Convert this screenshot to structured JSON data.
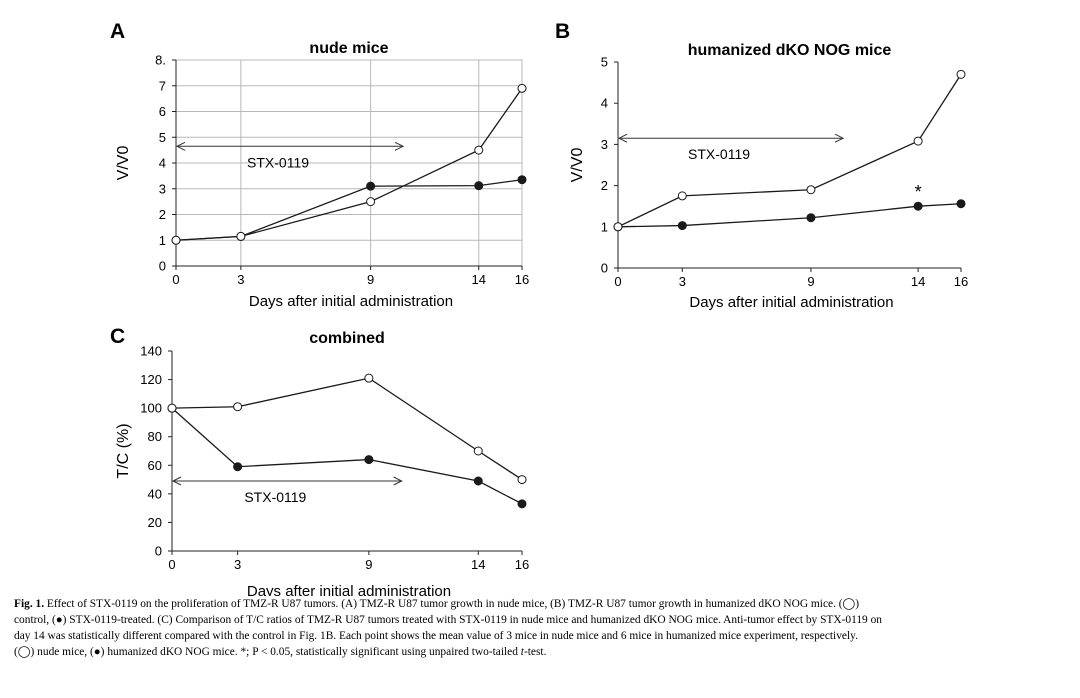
{
  "chart_data": [
    {
      "panel_label": "A",
      "type": "line",
      "title": "nude mice",
      "xlabel": "Days after initial administration",
      "ylabel": "V/V0",
      "x_categories": [
        "0",
        "3",
        "9",
        "14",
        "16"
      ],
      "y_ticks": [
        "0",
        "1",
        "2",
        "3",
        "4",
        "5",
        "6",
        "7",
        "8."
      ],
      "ylim": [
        0,
        8
      ],
      "grid": true,
      "series": [
        {
          "marker": "open",
          "values": [
            1.0,
            1.15,
            2.5,
            4.5,
            6.9
          ]
        },
        {
          "marker": "filled",
          "values": [
            1.0,
            1.15,
            3.1,
            3.12,
            3.35
          ]
        }
      ],
      "annotation": {
        "text": "STX-0119",
        "y": 4.65,
        "x_start": 0,
        "x_end": 10.5
      }
    },
    {
      "panel_label": "B",
      "type": "line",
      "title": "humanized dKO NOG mice",
      "xlabel": "Days after initial administration",
      "ylabel": "V/V0",
      "x_categories": [
        "0",
        "3",
        "9",
        "14",
        "16"
      ],
      "y_ticks": [
        "0",
        "1",
        "2",
        "3",
        "4",
        "5"
      ],
      "ylim": [
        0,
        5
      ],
      "grid": false,
      "series": [
        {
          "marker": "open",
          "values": [
            1.0,
            1.75,
            1.9,
            3.08,
            4.7
          ]
        },
        {
          "marker": "filled",
          "values": [
            1.0,
            1.03,
            1.22,
            1.5,
            1.56
          ]
        }
      ],
      "annotation": {
        "text": "STX-0119",
        "y": 3.15,
        "x_start": 0,
        "x_end": 10.5
      },
      "significance": {
        "text": "*",
        "x": 14,
        "y": 1.5
      }
    },
    {
      "panel_label": "C",
      "type": "line",
      "title": "combined",
      "xlabel": "Days after initial administration",
      "ylabel": "T/C (%)",
      "x_categories": [
        "0",
        "3",
        "9",
        "14",
        "16"
      ],
      "y_ticks": [
        "0",
        "20",
        "40",
        "60",
        "80",
        "100",
        "120",
        "140"
      ],
      "ylim": [
        0,
        140
      ],
      "grid": false,
      "series": [
        {
          "marker": "open",
          "values": [
            100,
            101,
            121,
            70,
            50
          ]
        },
        {
          "marker": "filled",
          "values": [
            100,
            59,
            64,
            49,
            33
          ]
        }
      ],
      "annotation": {
        "text": "STX-0119",
        "y": 49,
        "x_start": 0,
        "x_end": 10.5
      }
    }
  ],
  "caption": {
    "fig_label": "Fig. 1.",
    "line1": "Effect of STX-0119 on the proliferation of TMZ-R U87 tumors. (A) TMZ-R U87 tumor growth in nude mice, (B) TMZ-R U87 tumor growth in humanized dKO NOG mice. (◯)",
    "line2": "control, (●) STX-0119-treated. (C) Comparison of T/C ratios of TMZ-R U87 tumors treated with STX-0119 in nude mice and humanized dKO NOG mice. Anti-tumor effect by STX-0119 on",
    "line3": "day 14 was statistically different compared with the control in Fig. 1B. Each point shows the mean value of 3 mice in nude mice and 6 mice in humanized mice experiment, respectively.",
    "line4_a": "(◯) nude mice, (●) humanized dKO NOG mice. *; P < 0.05, statistically significant using unpaired two-tailed ",
    "line4_t": "t",
    "line4_b": "-test."
  },
  "colors": {
    "line": "#1a1a1a",
    "grid": "#b8b8b8",
    "axis": "#222222",
    "text": "#000000"
  }
}
